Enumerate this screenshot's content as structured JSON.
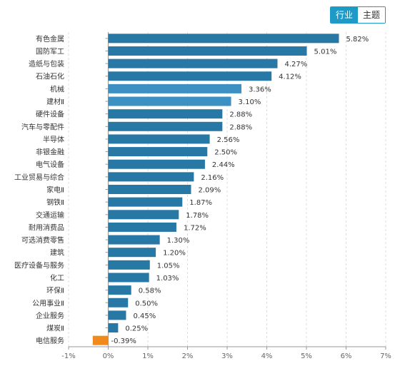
{
  "tabs": [
    {
      "label": "行业",
      "active": true
    },
    {
      "label": "主题",
      "active": false
    }
  ],
  "colors": {
    "bar": "#2878a6",
    "bar_highlight": "#3d91c2",
    "negative": "#f08a1c",
    "grid": "#dddddd",
    "axis": "#999999",
    "accent": "#1f9ac7"
  },
  "chart_data": {
    "type": "bar",
    "orientation": "horizontal",
    "title": "",
    "xlabel": "",
    "ylabel": "",
    "xlim": [
      -1,
      7
    ],
    "ticks": [
      -1,
      0,
      1,
      2,
      3,
      4,
      5,
      6,
      7
    ],
    "tick_labels": [
      "-1%",
      "0%",
      "1%",
      "2%",
      "3%",
      "4%",
      "5%",
      "6%",
      "7%"
    ],
    "grid": true,
    "categories": [
      "有色金属",
      "国防军工",
      "造纸与包装",
      "石油石化",
      "机械",
      "建材Ⅱ",
      "硬件设备",
      "汽车与零配件",
      "半导体",
      "非银金融",
      "电气设备",
      "工业贸易与综合",
      "家电Ⅱ",
      "钢铁Ⅱ",
      "交通运输",
      "耐用消费品",
      "可选消费零售",
      "建筑",
      "医疗设备与服务",
      "化工",
      "环保Ⅱ",
      "公用事业Ⅱ",
      "企业服务",
      "煤炭Ⅱ",
      "电信服务"
    ],
    "values": [
      5.82,
      5.01,
      4.27,
      4.12,
      3.36,
      3.1,
      2.88,
      2.88,
      2.56,
      2.5,
      2.44,
      2.16,
      2.09,
      1.87,
      1.78,
      1.72,
      1.3,
      1.2,
      1.05,
      1.03,
      0.58,
      0.5,
      0.45,
      0.25,
      -0.39
    ],
    "value_labels": [
      "5.82%",
      "5.01%",
      "4.27%",
      "4.12%",
      "3.36%",
      "3.10%",
      "2.88%",
      "2.88%",
      "2.56%",
      "2.50%",
      "2.44%",
      "2.16%",
      "2.09%",
      "1.87%",
      "1.78%",
      "1.72%",
      "1.30%",
      "1.20%",
      "1.05%",
      "1.03%",
      "0.58%",
      "0.50%",
      "0.45%",
      "0.25%",
      "-0.39%"
    ],
    "highlighted": [
      "机械",
      "建材Ⅱ"
    ]
  }
}
